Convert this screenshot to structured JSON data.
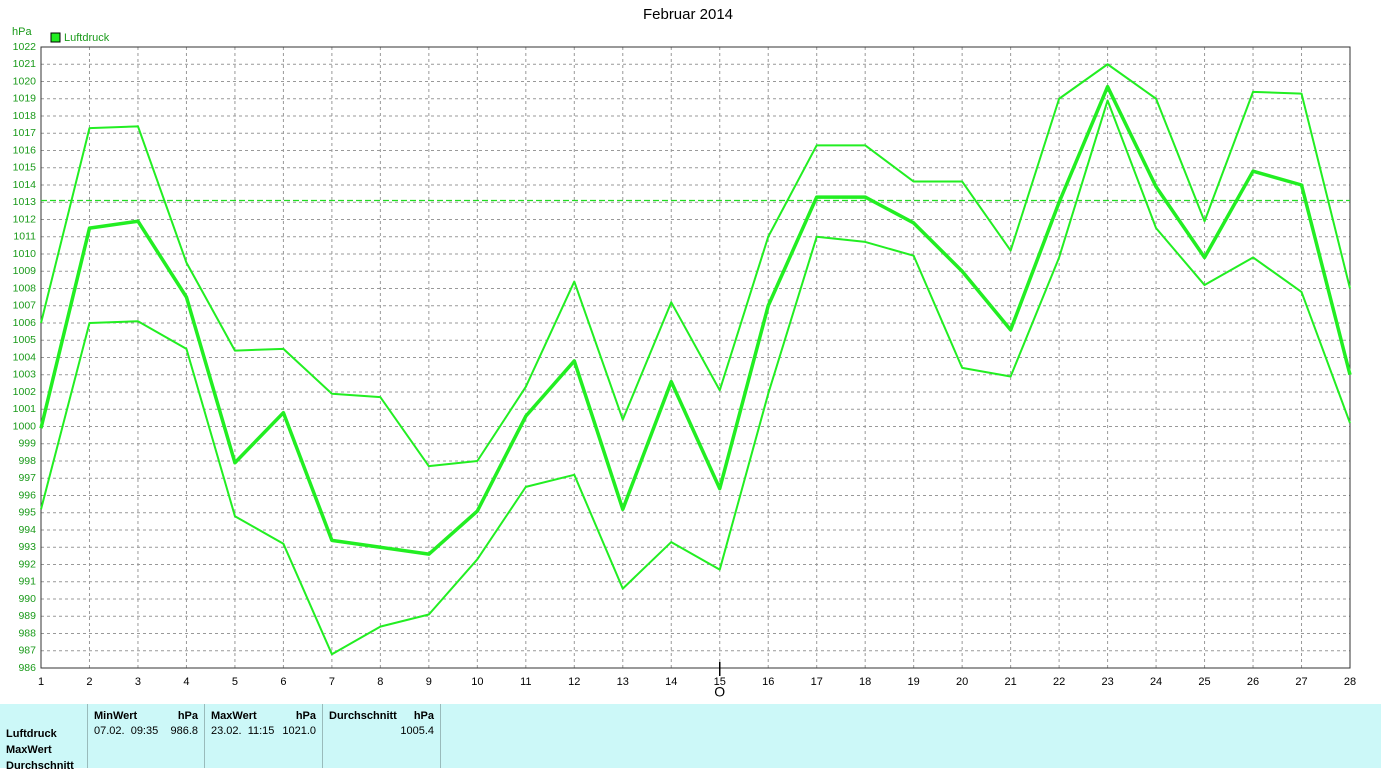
{
  "chart_data": {
    "type": "line",
    "title": "Februar 2014",
    "y_unit": "hPa",
    "legend": "Luftdruck",
    "x": [
      1,
      2,
      3,
      4,
      5,
      6,
      7,
      8,
      9,
      10,
      11,
      12,
      13,
      14,
      15,
      16,
      17,
      18,
      19,
      20,
      21,
      22,
      23,
      24,
      25,
      26,
      27,
      28
    ],
    "xlim": [
      1,
      28
    ],
    "xticks": [
      1,
      2,
      3,
      4,
      5,
      6,
      7,
      8,
      9,
      10,
      11,
      12,
      13,
      14,
      15,
      16,
      17,
      18,
      19,
      20,
      21,
      22,
      23,
      24,
      25,
      26,
      27,
      28
    ],
    "ylim": [
      986,
      1022
    ],
    "yticks": [
      986,
      987,
      988,
      989,
      990,
      991,
      992,
      993,
      994,
      995,
      996,
      997,
      998,
      999,
      1000,
      1001,
      1002,
      1003,
      1004,
      1005,
      1006,
      1007,
      1008,
      1009,
      1010,
      1011,
      1012,
      1013,
      1014,
      1015,
      1016,
      1017,
      1018,
      1019,
      1020,
      1021,
      1022
    ],
    "grid": true,
    "marker_label": "O",
    "marker_x": 15,
    "reference_line": 1013.1,
    "reference_color": "#22dd22",
    "series": [
      {
        "color": "#22ee22",
        "width": 2,
        "values": [
          1006.0,
          1017.3,
          1017.4,
          1009.5,
          1004.4,
          1004.5,
          1001.9,
          1001.7,
          997.7,
          998.0,
          1002.3,
          1008.4,
          1000.4,
          1007.2,
          1002.1,
          1011.0,
          1016.3,
          1016.3,
          1014.2,
          1014.2,
          1010.2,
          1019.0,
          1021.0,
          1019.0,
          1011.9,
          1019.4,
          1019.3,
          1008.0
        ]
      },
      {
        "color": "#22ee22",
        "width": 3.5,
        "values": [
          999.9,
          1011.5,
          1011.9,
          1007.5,
          997.9,
          1000.8,
          993.4,
          993.0,
          992.6,
          995.1,
          1000.6,
          1003.8,
          995.2,
          1002.6,
          996.4,
          1007.0,
          1013.3,
          1013.3,
          1011.8,
          1009.0,
          1005.6,
          1013.0,
          1019.7,
          1013.9,
          1009.8,
          1014.8,
          1014.0,
          1003.0
        ]
      },
      {
        "color": "#22ee22",
        "width": 2,
        "values": [
          995.2,
          1006.0,
          1006.1,
          1004.5,
          994.8,
          993.2,
          986.8,
          988.4,
          989.1,
          992.3,
          996.5,
          997.2,
          990.6,
          993.3,
          991.7,
          1001.9,
          1011.0,
          1010.7,
          1009.9,
          1003.4,
          1002.9,
          1009.8,
          1018.9,
          1011.5,
          1008.2,
          1009.8,
          1007.8,
          1000.2
        ]
      }
    ]
  },
  "summary": {
    "row_labels": [
      "Luftdruck",
      "MaxWert",
      "Durchschnitt"
    ],
    "columns": [
      {
        "header": "MinWert",
        "unit": "hPa",
        "date": "07.02.  09:35",
        "value": "986.8"
      },
      {
        "header": "MaxWert",
        "unit": "hPa",
        "date": "23.02.  11:15",
        "value": "1021.0"
      },
      {
        "header": "Durchschnitt",
        "unit": "hPa",
        "value": "1005.4"
      }
    ]
  }
}
